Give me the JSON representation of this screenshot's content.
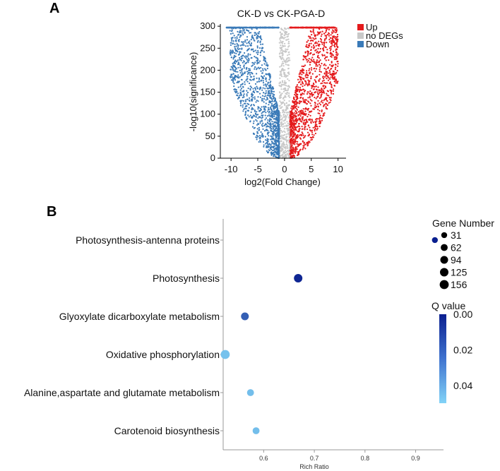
{
  "panel_a": {
    "letter": "A",
    "chart_data": {
      "type": "scatter",
      "title": "CK-D vs CK-PGA-D",
      "xlabel": "log2(Fold Change)",
      "ylabel": "-log10(significance)",
      "xlim": [
        -12,
        11.5
      ],
      "ylim": [
        0,
        305
      ],
      "x_ticks": [
        -10,
        -5,
        0,
        5,
        10
      ],
      "y_ticks": [
        0,
        50,
        100,
        150,
        200,
        250,
        300
      ],
      "x_tick_labels": [
        "-10",
        "-5",
        "0",
        "5",
        "10"
      ],
      "y_tick_labels": [
        "0",
        "50",
        "100",
        "150",
        "200",
        "250",
        "300"
      ],
      "fc_threshold": 1,
      "cap_value": 297,
      "legend": [
        {
          "label": "Up",
          "color": "#e41a1c"
        },
        {
          "label": "no DEGs",
          "color": "#c8c8c8"
        },
        {
          "label": "Down",
          "color": "#3a7ab8"
        }
      ],
      "legend_position": "top-right",
      "series": [
        {
          "name": "Up",
          "color": "#e41a1c",
          "x_range": [
            1,
            10
          ],
          "cap_x_range": [
            1,
            9.5
          ],
          "count": 1300
        },
        {
          "name": "no DEGs",
          "color": "#c8c8c8",
          "x_range": [
            -1,
            1
          ],
          "count": 500
        },
        {
          "name": "Down",
          "color": "#3a7ab8",
          "x_range": [
            -11,
            -1
          ],
          "cap_x_range": [
            -11,
            -1
          ],
          "count": 1300
        }
      ]
    }
  },
  "panel_b": {
    "letter": "B",
    "chart_data": {
      "type": "scatter",
      "xlabel": "Rich Ratio",
      "xlim": [
        0.52,
        0.955
      ],
      "x_ticks": [
        0.6,
        0.7,
        0.8,
        0.9
      ],
      "x_tick_labels": [
        "0.6",
        "0.7",
        "0.8",
        "0.9"
      ],
      "categories": [
        "Photosynthesis-antenna proteins",
        "Photosynthesis",
        "Glyoxylate dicarboxylate metabolism",
        "Oxidative phosphorylation",
        "Alanine,aspartate and glutamate metabolism",
        "Carotenoid biosynthesis"
      ],
      "points": [
        {
          "term": "Photosynthesis-antenna proteins",
          "rich_ratio": 0.938,
          "gene_number": 31,
          "q_value": 0.0
        },
        {
          "term": "Photosynthesis",
          "rich_ratio": 0.668,
          "gene_number": 125,
          "q_value": 0.002
        },
        {
          "term": "Glyoxylate dicarboxylate metabolism",
          "rich_ratio": 0.563,
          "gene_number": 94,
          "q_value": 0.018
        },
        {
          "term": "Oxidative phosphorylation",
          "rich_ratio": 0.524,
          "gene_number": 156,
          "q_value": 0.046
        },
        {
          "term": "Alanine,aspartate and glutamate metabolism",
          "rich_ratio": 0.574,
          "gene_number": 62,
          "q_value": 0.045
        },
        {
          "term": "Carotenoid biosynthesis",
          "rich_ratio": 0.585,
          "gene_number": 62,
          "q_value": 0.045
        }
      ],
      "size_legend": {
        "title": "Gene Number",
        "values": [
          31,
          62,
          94,
          125,
          156
        ],
        "labels": [
          "31",
          "62",
          "94",
          "125",
          "156"
        ]
      },
      "color_legend": {
        "title": "Q value",
        "range": [
          0,
          0.05
        ],
        "low_color": "#0a1f8f",
        "high_color": "#7fd0f5",
        "ticks": [
          0.0,
          0.02,
          0.04
        ],
        "tick_labels": [
          "0.00",
          "0.02",
          "0.04"
        ]
      }
    }
  }
}
